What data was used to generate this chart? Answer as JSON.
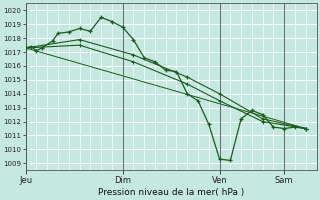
{
  "xlabel": "Pression niveau de la mer( hPa )",
  "bg_color": "#c5e8e0",
  "line_color": "#1a5c1a",
  "grid_color": "#a8d8c8",
  "ylim": [
    1008.5,
    1020.5
  ],
  "yticks": [
    1009,
    1010,
    1011,
    1012,
    1013,
    1014,
    1015,
    1016,
    1017,
    1018,
    1019,
    1020
  ],
  "day_labels": [
    "Jeu",
    "Dim",
    "Ven",
    "Sam"
  ],
  "day_positions": [
    0,
    9,
    18,
    24
  ],
  "xlim": [
    0,
    27
  ],
  "line1_x": [
    0,
    0.5,
    1,
    1.5,
    2.5,
    3,
    4,
    5,
    6,
    7,
    8,
    9,
    10,
    11,
    12,
    13,
    14,
    15,
    16,
    17,
    18,
    19,
    20,
    21,
    22,
    23,
    24,
    25,
    26
  ],
  "line1_y": [
    1017.3,
    1017.4,
    1017.1,
    1017.3,
    1017.8,
    1018.35,
    1018.45,
    1018.7,
    1018.5,
    1019.5,
    1019.2,
    1018.8,
    1017.9,
    1016.6,
    1016.3,
    1015.7,
    1015.6,
    1014.0,
    1013.5,
    1011.8,
    1009.3,
    1009.2,
    1012.2,
    1012.8,
    1012.5,
    1011.6,
    1011.5,
    1011.6,
    1011.5
  ],
  "line2_x": [
    0,
    5,
    10,
    15,
    18,
    22,
    26
  ],
  "line2_y": [
    1017.3,
    1017.9,
    1016.8,
    1015.2,
    1014.0,
    1012.2,
    1011.5
  ],
  "line3_x": [
    0,
    5,
    10,
    15,
    18,
    22,
    26
  ],
  "line3_y": [
    1017.3,
    1017.5,
    1016.3,
    1014.7,
    1013.5,
    1012.0,
    1011.5
  ],
  "line4_x": [
    0,
    26
  ],
  "line4_y": [
    1017.3,
    1011.5
  ]
}
